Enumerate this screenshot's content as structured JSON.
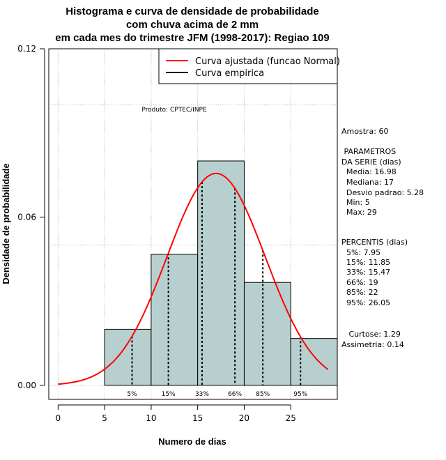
{
  "chart_data": {
    "type": "histogram",
    "title_lines": [
      "Histograma e curva de densidade de probabilidade",
      "com chuva acima de 2 mm",
      "em cada mes do trimestre JFM (1998-2017): Regiao 109"
    ],
    "xlabel": "Numero de dias",
    "ylabel": "Densidade de probabilidade",
    "xlim": [
      -1,
      30
    ],
    "ylim": [
      -0.005,
      0.12
    ],
    "x_ticks": [
      0,
      5,
      10,
      15,
      20,
      25
    ],
    "x_tick_labels": [
      "0",
      "5",
      "10",
      "15",
      "20",
      "25"
    ],
    "y_ticks": [
      0,
      0.06,
      0.12
    ],
    "y_tick_labels": [
      "0.00",
      "0.06",
      "0.12"
    ],
    "grid_x": [
      0,
      5,
      10,
      15,
      20,
      25
    ],
    "grid_y": [
      0,
      0.05,
      0.1
    ],
    "bins": [
      {
        "start": 5,
        "end": 10,
        "density": 0.02
      },
      {
        "start": 10,
        "end": 15,
        "density": 0.0467
      },
      {
        "start": 15,
        "end": 20,
        "density": 0.08
      },
      {
        "start": 20,
        "end": 25,
        "density": 0.0367
      },
      {
        "start": 25,
        "end": 30,
        "density": 0.0167
      }
    ],
    "bar_color": "#b8cfcf",
    "normal_fit": {
      "mean": 16.98,
      "sd": 5.28,
      "x_from": 0,
      "x_to": 29,
      "color": "#ff0000"
    },
    "percentile_lines": [
      {
        "label": "5%",
        "x": 7.95
      },
      {
        "label": "15%",
        "x": 11.85
      },
      {
        "label": "33%",
        "x": 15.47
      },
      {
        "label": "66%",
        "x": 19
      },
      {
        "label": "85%",
        "x": 22
      },
      {
        "label": "95%",
        "x": 26.05
      }
    ],
    "legend": {
      "position": "top-right",
      "entries": [
        {
          "label": "Curva ajustada (funcao Normal)",
          "color": "#ff0000"
        },
        {
          "label": "Curva empirica",
          "color": "#000000"
        }
      ]
    },
    "credit": "Produto: CPTEC/INPE",
    "side_text": [
      "Amostra: 60",
      " PARAMETROS",
      "DA SERIE (dias)",
      "  Media: 16.98",
      "  Mediana: 17",
      "  Desvio padrao: 5.28",
      "  Min: 5",
      "  Max: 29",
      "PERCENTIS (dias)",
      "  5%: 7.95",
      "  15%: 11.85",
      "  33%: 15.47",
      "  66%: 19",
      "  85%: 22",
      "  95%: 26.05",
      "   Curtose: 1.29",
      "Assimetria: 0.14"
    ]
  }
}
